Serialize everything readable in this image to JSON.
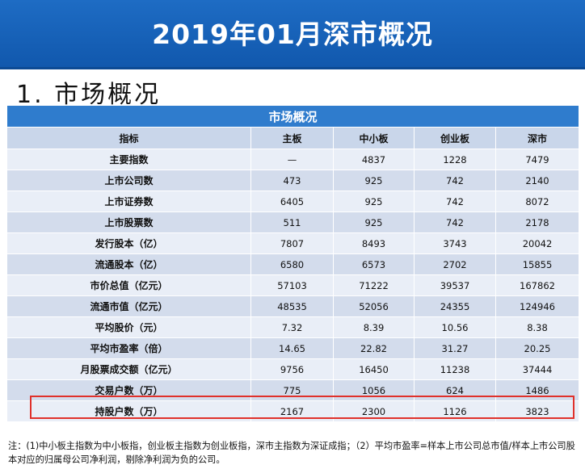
{
  "title": "2019年01月深市概况",
  "section_title": "1. 市场概况",
  "table": {
    "caption": "市场概况",
    "columns": [
      "指标",
      "主板",
      "中小板",
      "创业板",
      "深市"
    ],
    "rows": [
      {
        "label": "主要指数",
        "values": [
          "—",
          "4837",
          "1228",
          "7479"
        ]
      },
      {
        "label": "上市公司数",
        "values": [
          "473",
          "925",
          "742",
          "2140"
        ]
      },
      {
        "label": "上市证券数",
        "values": [
          "6405",
          "925",
          "742",
          "8072"
        ]
      },
      {
        "label": "上市股票数",
        "values": [
          "511",
          "925",
          "742",
          "2178"
        ]
      },
      {
        "label": "发行股本（亿）",
        "values": [
          "7807",
          "8493",
          "3743",
          "20042"
        ]
      },
      {
        "label": "流通股本（亿）",
        "values": [
          "6580",
          "6573",
          "2702",
          "15855"
        ]
      },
      {
        "label": "市价总值（亿元）",
        "values": [
          "57103",
          "71222",
          "39537",
          "167862"
        ]
      },
      {
        "label": "流通市值（亿元）",
        "values": [
          "48535",
          "52056",
          "24355",
          "124946"
        ]
      },
      {
        "label": "平均股价（元）",
        "values": [
          "7.32",
          "8.39",
          "10.56",
          "8.38"
        ]
      },
      {
        "label": "平均市盈率（倍）",
        "values": [
          "14.65",
          "22.82",
          "31.27",
          "20.25"
        ]
      },
      {
        "label": "月股票成交额（亿元）",
        "values": [
          "9756",
          "16450",
          "11238",
          "37444"
        ]
      },
      {
        "label": "交易户数（万）",
        "values": [
          "775",
          "1056",
          "624",
          "1486"
        ]
      },
      {
        "label": "持股户数（万）",
        "values": [
          "2167",
          "2300",
          "1126",
          "3823"
        ]
      }
    ]
  },
  "note": "注：(1)中小板主指数为中小板指，创业板主指数为创业板指，深市主指数为深证成指；（2）平均市盈率=样本上市公司总市值/样本上市公司股本对应的归属母公司净利润，剔除净利润为负的公司。",
  "colors": {
    "banner": "#1560b5",
    "caption": "#2f7ccd",
    "highlight": "#e0312b"
  }
}
